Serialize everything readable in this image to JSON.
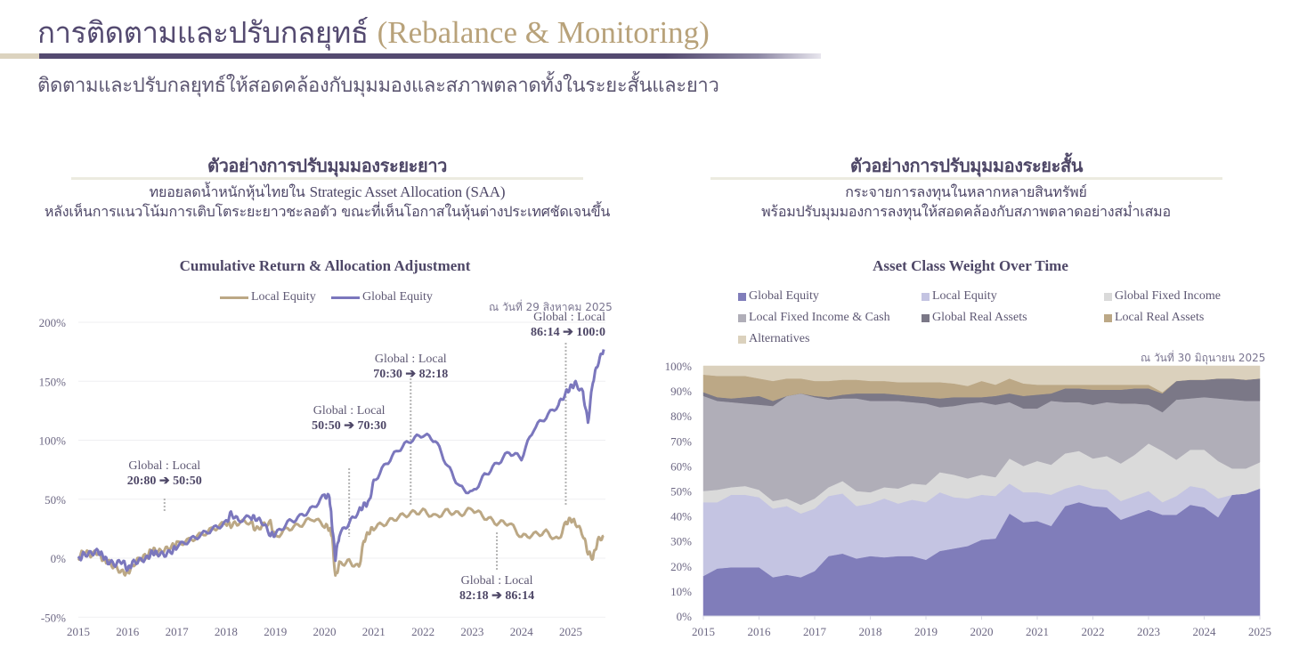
{
  "header": {
    "title_th": "การติดตามและปรับกลยุทธ์",
    "title_en": "(Rebalance & Monitoring)",
    "subtitle": "ติดตามและปรับกลยุทธ์ให้สอดคล้องกับมุมมองและสภาพตลาดทั้งในระยะสั้นและยาว",
    "accent_colors": {
      "purple": "#544a70",
      "gold": "#b8a27a",
      "beige": "#dcd3bf"
    }
  },
  "left_section": {
    "title": "ตัวอย่างการปรับมุมมองระยะยาว",
    "desc_line1_th": "ทยอยลดน้ำหนักหุ้นไทยใน",
    "desc_line1_en": "Strategic Asset Allocation (SAA)",
    "desc_line2": "หลังเห็นการแนวโน้มการเติบโตระยะยาวชะลอตัว ขณะที่เห็นโอกาสในหุ้นต่างประเทศชัดเจนขึ้น"
  },
  "right_section": {
    "title": "ตัวอย่างการปรับมุมมองระยะสั้น",
    "desc_line1": "กระจายการลงทุนในหลากหลายสินทรัพย์",
    "desc_line2": "พร้อมปรับมุมมองการลงทุนให้สอดคล้องกับสภาพตลาดอย่างสม่ำเสมอ"
  },
  "chart_data": [
    {
      "type": "line",
      "title": "Cumulative Return & Allocation Adjustment",
      "date_note": "ณ วันที่ 29 สิงหาคม 2025",
      "xlabel": "",
      "ylabel": "",
      "xlim": [
        2015,
        2025.67
      ],
      "ylim": [
        -50,
        200
      ],
      "x_ticks": [
        "2015",
        "2016",
        "2017",
        "2018",
        "2019",
        "2020",
        "2021",
        "2022",
        "2023",
        "2024",
        "2025"
      ],
      "y_ticks": [
        "-50%",
        "0%",
        "50%",
        "100%",
        "150%",
        "200%"
      ],
      "y_tick_values": [
        -50,
        0,
        50,
        100,
        150,
        200
      ],
      "grid": true,
      "legend_position": "top-center",
      "series": [
        {
          "name": "Local Equity",
          "color": "#bca885",
          "x": [
            2015.0,
            2015.1,
            2015.25,
            2015.4,
            2015.5,
            2015.6,
            2015.75,
            2015.9,
            2016.0,
            2016.1,
            2016.25,
            2016.4,
            2016.5,
            2016.6,
            2016.75,
            2016.9,
            2017.0,
            2017.25,
            2017.5,
            2017.75,
            2018.0,
            2018.1,
            2018.25,
            2018.5,
            2018.6,
            2018.75,
            2018.9,
            2019.0,
            2019.25,
            2019.5,
            2019.75,
            2020.0,
            2020.1,
            2020.15,
            2020.22,
            2020.3,
            2020.5,
            2020.7,
            2020.8,
            2020.9,
            2021.0,
            2021.25,
            2021.5,
            2021.75,
            2022.0,
            2022.25,
            2022.5,
            2022.75,
            2023.0,
            2023.25,
            2023.5,
            2023.75,
            2024.0,
            2024.25,
            2024.5,
            2024.75,
            2024.9,
            2025.0,
            2025.1,
            2025.25,
            2025.35,
            2025.45,
            2025.55,
            2025.67
          ],
          "y": [
            0,
            6,
            3,
            5,
            -1,
            -3,
            -8,
            -12,
            -13,
            -6,
            0,
            2,
            8,
            5,
            7,
            10,
            12,
            15,
            20,
            25,
            30,
            28,
            30,
            31,
            24,
            28,
            30,
            18,
            25,
            28,
            34,
            28,
            25,
            20,
            -16,
            -5,
            -3,
            -8,
            15,
            22,
            26,
            30,
            35,
            38,
            40,
            35,
            40,
            37,
            42,
            35,
            30,
            30,
            18,
            20,
            22,
            15,
            30,
            33,
            30,
            20,
            5,
            0,
            15,
            19
          ]
        },
        {
          "name": "Global Equity",
          "color": "#7b77bd",
          "x": [
            2015.0,
            2015.1,
            2015.25,
            2015.4,
            2015.5,
            2015.6,
            2015.75,
            2015.9,
            2016.0,
            2016.1,
            2016.25,
            2016.4,
            2016.5,
            2016.6,
            2016.75,
            2016.9,
            2017.0,
            2017.25,
            2017.5,
            2017.75,
            2018.0,
            2018.1,
            2018.25,
            2018.5,
            2018.6,
            2018.75,
            2018.9,
            2019.0,
            2019.25,
            2019.5,
            2019.75,
            2020.0,
            2020.1,
            2020.15,
            2020.22,
            2020.3,
            2020.5,
            2020.7,
            2020.8,
            2020.9,
            2021.0,
            2021.25,
            2021.5,
            2021.75,
            2022.0,
            2022.25,
            2022.5,
            2022.75,
            2023.0,
            2023.25,
            2023.5,
            2023.75,
            2024.0,
            2024.25,
            2024.5,
            2024.75,
            2024.9,
            2025.0,
            2025.1,
            2025.25,
            2025.35,
            2025.45,
            2025.55,
            2025.67
          ],
          "y": [
            -2,
            3,
            4,
            6,
            2,
            -3,
            -5,
            -2,
            -10,
            -4,
            -2,
            0,
            5,
            4,
            3,
            6,
            10,
            15,
            20,
            25,
            30,
            38,
            32,
            35,
            34,
            30,
            20,
            20,
            30,
            35,
            42,
            53,
            52,
            30,
            0,
            20,
            30,
            40,
            45,
            47,
            65,
            80,
            92,
            100,
            105,
            100,
            78,
            60,
            55,
            70,
            80,
            90,
            85,
            110,
            120,
            130,
            140,
            145,
            148,
            140,
            115,
            150,
            165,
            177
          ]
        }
      ],
      "annotations": [
        {
          "label": "Global : Local",
          "change": "20:80 ➔ 50:50",
          "x": 2016.75
        },
        {
          "label": "Global : Local",
          "change": "50:50 ➔ 70:30",
          "x": 2020.5
        },
        {
          "label": "Global : Local",
          "change": "70:30 ➔ 82:18",
          "x": 2021.75
        },
        {
          "label": "Global : Local",
          "change": "82:18 ➔ 86:14",
          "x": 2023.5
        },
        {
          "label": "Global : Local",
          "change": "86:14 ➔ 100:0",
          "x": 2024.9
        }
      ]
    },
    {
      "type": "area",
      "stacked": true,
      "title": "Asset Class Weight Over Time",
      "date_note": "ณ วันที่ 30 มิถุนายน 2025",
      "xlim": [
        2015,
        2025
      ],
      "ylim": [
        0,
        100
      ],
      "x_ticks": [
        "2015",
        "2016",
        "2017",
        "2018",
        "2019",
        "2020",
        "2021",
        "2022",
        "2023",
        "2024",
        "2025"
      ],
      "y_ticks": [
        "0%",
        "10%",
        "20%",
        "30%",
        "40%",
        "50%",
        "60%",
        "70%",
        "80%",
        "90%",
        "100%"
      ],
      "y_tick_values": [
        0,
        10,
        20,
        30,
        40,
        50,
        60,
        70,
        80,
        90,
        100
      ],
      "legend_position": "top",
      "x_step": 0.25,
      "series": [
        {
          "name": "Global Equity",
          "color": "#807dba",
          "values": [
            16,
            19,
            19.5,
            19.5,
            19.5,
            15.5,
            16.5,
            15.5,
            18,
            24,
            25,
            23,
            24,
            23.5,
            24,
            24,
            22.5,
            26,
            27,
            28,
            30.5,
            31,
            41,
            37.5,
            38,
            36,
            44,
            45.5,
            44,
            43.5,
            38.5,
            40.5,
            42.5,
            40.5,
            40.5,
            44.5,
            43.5,
            39.5,
            48.5,
            49,
            51
          ]
        },
        {
          "name": "Local Equity",
          "color": "#c4c4e2",
          "values": [
            29.5,
            26.5,
            29,
            29,
            28,
            27.5,
            27.5,
            25.5,
            25,
            24,
            24,
            21,
            21,
            23.5,
            21,
            22.5,
            23,
            23.5,
            20.5,
            19,
            18,
            17,
            12,
            12,
            11.5,
            12.5,
            7,
            7,
            7,
            7,
            7.5,
            7.5,
            7.5,
            5,
            7.5,
            7.5,
            7.5,
            7.5,
            0,
            0,
            0
          ]
        },
        {
          "name": "Global Fixed Income",
          "color": "#dadada",
          "values": [
            4.5,
            5,
            3,
            3.5,
            3,
            3,
            3,
            3.5,
            4,
            3.5,
            5,
            6,
            4.5,
            4.5,
            6,
            6.5,
            7,
            8,
            9,
            8,
            8,
            7.5,
            10,
            10.5,
            12.5,
            12,
            14,
            13.5,
            12,
            13.5,
            15,
            16.5,
            19,
            20.5,
            14.5,
            14.5,
            15.5,
            15,
            10.5,
            10,
            10.5
          ]
        },
        {
          "name": "Local Fixed Income & Cash",
          "color": "#b0aeb8",
          "values": [
            38,
            35.5,
            34,
            33,
            34,
            38,
            41,
            44.5,
            40.5,
            35,
            33,
            37,
            36.5,
            34.5,
            35,
            32.5,
            32.5,
            26,
            27.5,
            30,
            29,
            29,
            22.5,
            23,
            21,
            25.5,
            20.5,
            19.5,
            21.5,
            21.5,
            24,
            20.5,
            15.5,
            15.5,
            24,
            20.5,
            21,
            25,
            27.5,
            27,
            24.5
          ]
        },
        {
          "name": "Global Real Assets",
          "color": "#7b7887",
          "values": [
            1.5,
            1.5,
            1.5,
            2.5,
            3.5,
            2,
            0,
            0,
            0.5,
            1,
            1.5,
            2,
            3,
            3,
            2.5,
            2.5,
            2.5,
            3.5,
            3.5,
            2.5,
            2,
            3.5,
            3.5,
            5,
            5.5,
            3,
            5.5,
            5.5,
            6,
            5,
            5.5,
            6,
            6.5,
            7.5,
            7.5,
            7.5,
            7,
            8,
            8.5,
            8.5,
            9
          ]
        },
        {
          "name": "Local Real Assets",
          "color": "#bca886",
          "values": [
            7,
            8.5,
            9,
            8.5,
            7,
            8,
            7,
            6,
            6,
            6.5,
            6,
            5.5,
            5,
            5,
            5,
            5.5,
            6,
            6.5,
            5.5,
            4.5,
            6.5,
            4.5,
            6,
            5,
            4,
            3.5,
            1.5,
            1.5,
            2,
            2,
            2,
            1.5,
            1.5,
            0.5,
            0,
            0,
            0,
            0,
            0,
            0,
            0
          ]
        },
        {
          "name": "Alternatives",
          "color": "#dbd1bd",
          "values": [
            3.5,
            4,
            4,
            4,
            5,
            6,
            5,
            5,
            6,
            6,
            5.5,
            5.5,
            6,
            6,
            6.5,
            6.5,
            6.5,
            6.5,
            7,
            8,
            6,
            7.5,
            5,
            7,
            7.5,
            7.5,
            7.5,
            7.5,
            7.5,
            7.5,
            7.5,
            7.5,
            7.5,
            10.5,
            6,
            5.5,
            5.5,
            5,
            5,
            5.5,
            5
          ]
        }
      ]
    }
  ]
}
